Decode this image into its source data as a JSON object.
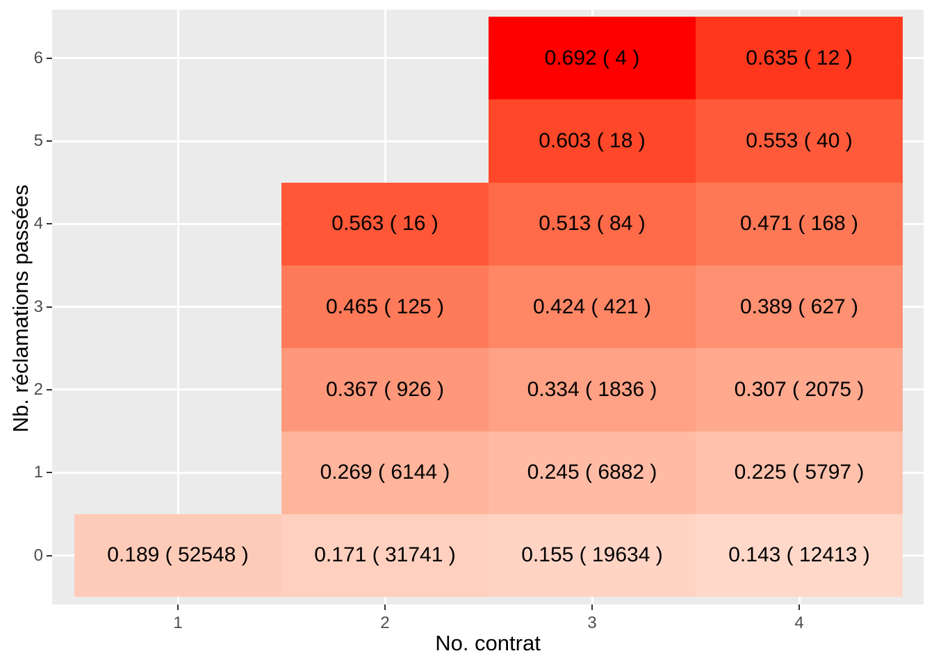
{
  "chart_data": {
    "type": "heatmap",
    "title": "",
    "xlabel": "No. contrat",
    "ylabel": "Nb. réclamations passées",
    "x_ticks": [
      "1",
      "2",
      "3",
      "4"
    ],
    "y_ticks": [
      "0",
      "1",
      "2",
      "3",
      "4",
      "5",
      "6"
    ],
    "x_tick_values": [
      1,
      2,
      3,
      4
    ],
    "y_tick_values": [
      0,
      1,
      2,
      3,
      4,
      5,
      6
    ],
    "x_domain": [
      0.5,
      4.5
    ],
    "y_domain": [
      -0.5,
      6.5
    ],
    "legend": "none",
    "grid": "major-only",
    "fill_gradient": {
      "low": "#FFFFFF",
      "high": "#FF0000",
      "domain": [
        0,
        0.692
      ],
      "space": "Lab"
    },
    "colors": {
      "page_background": "#FFFFFF",
      "panel_background": "#EBEBEB",
      "grid": "#FFFFFF",
      "tick_marks": "#333333",
      "tick_labels": "#4D4D4D",
      "axis_titles": "#000000",
      "cell_text": "#000000",
      "max_cell": "#FF0000"
    },
    "cells": [
      {
        "x": 1,
        "y": 0,
        "value": 0.189,
        "count": 52548,
        "label": "0.189 ( 52548 )"
      },
      {
        "x": 2,
        "y": 0,
        "value": 0.171,
        "count": 31741,
        "label": "0.171 ( 31741 )"
      },
      {
        "x": 3,
        "y": 0,
        "value": 0.155,
        "count": 19634,
        "label": "0.155 ( 19634 )"
      },
      {
        "x": 4,
        "y": 0,
        "value": 0.143,
        "count": 12413,
        "label": "0.143 ( 12413 )"
      },
      {
        "x": 2,
        "y": 1,
        "value": 0.269,
        "count": 6144,
        "label": "0.269 ( 6144 )"
      },
      {
        "x": 3,
        "y": 1,
        "value": 0.245,
        "count": 6882,
        "label": "0.245 ( 6882 )"
      },
      {
        "x": 4,
        "y": 1,
        "value": 0.225,
        "count": 5797,
        "label": "0.225 ( 5797 )"
      },
      {
        "x": 2,
        "y": 2,
        "value": 0.367,
        "count": 926,
        "label": "0.367 ( 926 )"
      },
      {
        "x": 3,
        "y": 2,
        "value": 0.334,
        "count": 1836,
        "label": "0.334 ( 1836 )"
      },
      {
        "x": 4,
        "y": 2,
        "value": 0.307,
        "count": 2075,
        "label": "0.307 ( 2075 )"
      },
      {
        "x": 2,
        "y": 3,
        "value": 0.465,
        "count": 125,
        "label": "0.465 ( 125 )"
      },
      {
        "x": 3,
        "y": 3,
        "value": 0.424,
        "count": 421,
        "label": "0.424 ( 421 )"
      },
      {
        "x": 4,
        "y": 3,
        "value": 0.389,
        "count": 627,
        "label": "0.389 ( 627 )"
      },
      {
        "x": 2,
        "y": 4,
        "value": 0.563,
        "count": 16,
        "label": "0.563 ( 16 )"
      },
      {
        "x": 3,
        "y": 4,
        "value": 0.513,
        "count": 84,
        "label": "0.513 ( 84 )"
      },
      {
        "x": 4,
        "y": 4,
        "value": 0.471,
        "count": 168,
        "label": "0.471 ( 168 )"
      },
      {
        "x": 3,
        "y": 5,
        "value": 0.603,
        "count": 18,
        "label": "0.603 ( 18 )"
      },
      {
        "x": 4,
        "y": 5,
        "value": 0.553,
        "count": 40,
        "label": "0.553 ( 40 )"
      },
      {
        "x": 3,
        "y": 6,
        "value": 0.692,
        "count": 4,
        "label": "0.692 ( 4 )"
      },
      {
        "x": 4,
        "y": 6,
        "value": 0.635,
        "count": 12,
        "label": "0.635 ( 12 )"
      }
    ]
  }
}
